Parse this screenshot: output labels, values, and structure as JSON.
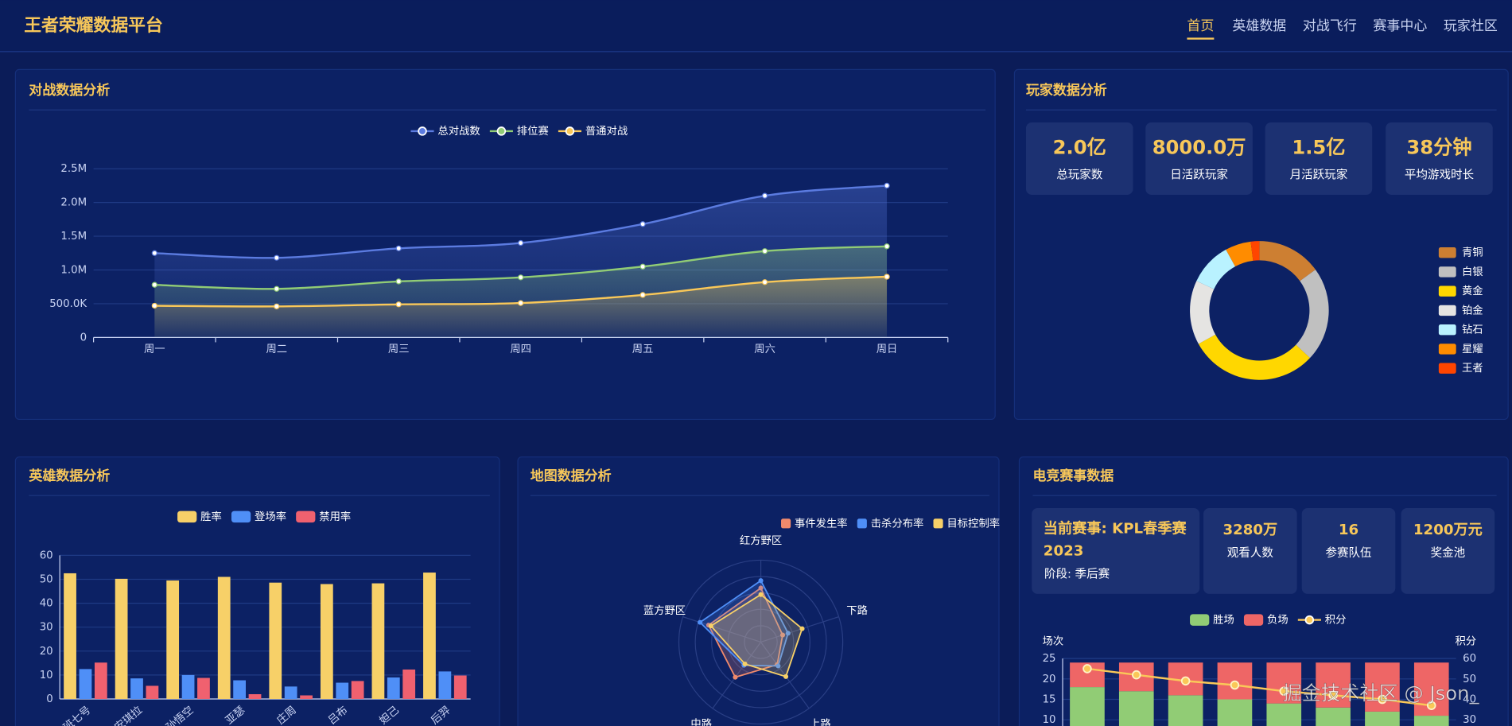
{
  "header": {
    "title": "王者荣耀数据平台",
    "nav": [
      "首页",
      "英雄数据",
      "对战飞行",
      "赛事中心",
      "玩家社区"
    ]
  },
  "players": {
    "title": "玩家数据分析",
    "stats": [
      {
        "value": "2.0亿",
        "label": "总玩家数"
      },
      {
        "value": "8000.0万",
        "label": "日活跃玩家"
      },
      {
        "value": "1.5亿",
        "label": "月活跃玩家"
      },
      {
        "value": "38分钟",
        "label": "平均游戏时长"
      }
    ]
  },
  "esports": {
    "title": "电竞赛事数据",
    "event": "当前赛事: KPL春季赛2023",
    "stage": "阶段: 季后赛",
    "stats": [
      {
        "value": "3280万",
        "label": "观看人数"
      },
      {
        "value": "16",
        "label": "参赛队伍"
      },
      {
        "value": "1200万元",
        "label": "奖金池"
      }
    ]
  },
  "watermark": "掘金技术社区 @ Json_",
  "chart_data": [
    {
      "type": "line",
      "title": "对战数据分析",
      "smooth": true,
      "area": true,
      "grid": true,
      "categories": [
        "周一",
        "周二",
        "周三",
        "周四",
        "周五",
        "周六",
        "周日"
      ],
      "series": [
        {
          "name": "总对战数",
          "color": "#5b7be0",
          "values": [
            1250000,
            1180000,
            1320000,
            1400000,
            1680000,
            2100000,
            2250000
          ]
        },
        {
          "name": "排位赛",
          "color": "#91cc75",
          "values": [
            780000,
            720000,
            830000,
            890000,
            1050000,
            1280000,
            1350000
          ]
        },
        {
          "name": "普通对战",
          "color": "#fac858",
          "values": [
            470000,
            460000,
            490000,
            510000,
            630000,
            820000,
            900000
          ]
        }
      ],
      "ylim": [
        0,
        2500000
      ],
      "yticks": [
        0,
        {
          "value": 500000,
          "label": "500.0K"
        },
        {
          "value": 1000000,
          "label": "1.0M"
        },
        {
          "value": 1500000,
          "label": "1.5M"
        },
        {
          "value": 2000000,
          "label": "2.0M"
        },
        {
          "value": 2500000,
          "label": "2.5M"
        }
      ]
    },
    {
      "type": "pie",
      "donut": true,
      "legend": "right",
      "categories": [
        "青铜",
        "白银",
        "黄金",
        "铂金",
        "钻石",
        "星耀",
        "王者"
      ],
      "values": [
        15,
        22,
        30,
        15,
        10,
        6,
        2
      ],
      "colors": [
        "#cd7f32",
        "#c0c0c0",
        "#ffd700",
        "#e5e4e2",
        "#b9f2ff",
        "#ff8c00",
        "#ff4500"
      ]
    },
    {
      "type": "bar",
      "title": "英雄数据分析",
      "grid": true,
      "categories": [
        "鲁班七号",
        "安琪拉",
        "孙悟空",
        "亚瑟",
        "庄周",
        "吕布",
        "妲己",
        "后羿"
      ],
      "series": [
        {
          "name": "胜率",
          "color": "#f7d068",
          "values": [
            52.5,
            50.2,
            49.5,
            51,
            48.6,
            48,
            48.3,
            52.8
          ]
        },
        {
          "name": "登场率",
          "color": "#4f8ff7",
          "values": [
            12.5,
            8.6,
            10,
            7.8,
            5.2,
            6.8,
            9,
            11.5
          ]
        },
        {
          "name": "禁用率",
          "color": "#f0616f",
          "values": [
            15.2,
            5.5,
            8.8,
            2,
            1.5,
            7.5,
            12.3,
            9.8
          ]
        }
      ],
      "ylim": [
        0,
        60
      ],
      "yticks": [
        0,
        10,
        20,
        30,
        40,
        50,
        60
      ]
    },
    {
      "type": "radar",
      "title": "地图数据分析",
      "indicators": [
        "红方野区",
        "下路",
        "上路",
        "中路",
        "蓝方野区"
      ],
      "rlim": [
        0,
        100
      ],
      "series": [
        {
          "name": "事件发生率",
          "color": "#f08a6c",
          "values": [
            66,
            28,
            34,
            53,
            67
          ]
        },
        {
          "name": "击杀分布率",
          "color": "#4f8ff7",
          "values": [
            75,
            35,
            36,
            35,
            78
          ]
        },
        {
          "name": "目标控制率",
          "color": "#f7d068",
          "values": [
            58,
            53,
            52,
            33,
            64
          ]
        }
      ]
    },
    {
      "type": "bar",
      "stacked": true,
      "grid": true,
      "categories": [
        null,
        null,
        null,
        null,
        null,
        null,
        null,
        null
      ],
      "series": [
        {
          "name": "胜场",
          "color": "#91cc75",
          "values": [
            18,
            17,
            16,
            15,
            14,
            13,
            12,
            11
          ]
        },
        {
          "name": "负场",
          "color": "#ee6666",
          "values": [
            6,
            7,
            8,
            9,
            10,
            11,
            12,
            13
          ]
        },
        {
          "name": "积分",
          "type": "line",
          "axis": "y2",
          "color": "#fac858",
          "values": [
            55,
            52,
            49,
            47,
            44,
            42,
            40,
            37
          ]
        }
      ],
      "ylabel": "场次",
      "y2label": "积分",
      "ylim": [
        0,
        25
      ],
      "yticks": [
        10,
        15,
        20,
        25
      ],
      "y2lim": [
        10,
        60
      ],
      "y2ticks": [
        30,
        40,
        50,
        60
      ]
    }
  ]
}
